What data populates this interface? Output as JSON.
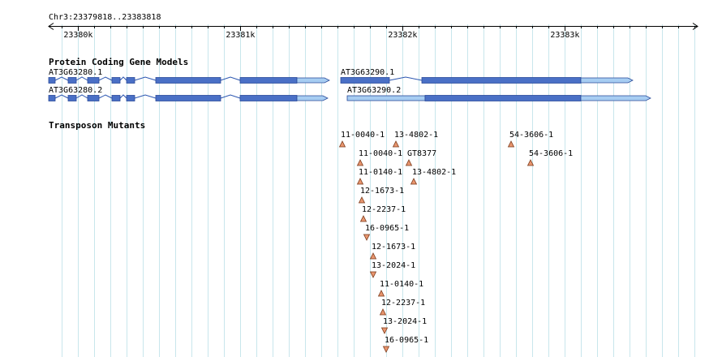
{
  "region": {
    "label": "Chr3:23379818..23383818",
    "start": 23379818,
    "end": 23383818,
    "ticks": [
      {
        "pos": 23380000,
        "label": "23380k"
      },
      {
        "pos": 23381000,
        "label": "23381k"
      },
      {
        "pos": 23382000,
        "label": "23382k"
      },
      {
        "pos": 23383000,
        "label": "23383k"
      }
    ]
  },
  "colors": {
    "grid": "#c8e6ec",
    "axis": "#000000",
    "exon": "#4a70c6",
    "utr": "#a7cdf2",
    "exon_border": "#2a4a99",
    "intron": "#2a55b0",
    "marker_fill": "#e8956e",
    "marker_border": "#7a3a1a"
  },
  "tracks": {
    "genes": {
      "title": "Protein Coding Gene Models",
      "models": [
        {
          "name": "AT3G63280.1",
          "strand": "+",
          "start": 23379818,
          "end": 23381548,
          "exons": [
            [
              23379818,
              23379858
            ],
            [
              23379938,
              23379988
            ],
            [
              23380058,
              23380128
            ],
            [
              23380208,
              23380258
            ],
            [
              23380298,
              23380348
            ],
            [
              23380478,
              23380878
            ],
            [
              23380998,
              23381348
            ]
          ],
          "utrs": [
            [
              23381348,
              23381548
            ]
          ]
        },
        {
          "name": "AT3G63280.2",
          "strand": "+",
          "start": 23379818,
          "end": 23381538,
          "exons": [
            [
              23379818,
              23379858
            ],
            [
              23379938,
              23379988
            ],
            [
              23380058,
              23380128
            ],
            [
              23380208,
              23380258
            ],
            [
              23380298,
              23380348
            ],
            [
              23380478,
              23380878
            ],
            [
              23380998,
              23381348
            ]
          ],
          "utrs": [
            [
              23381348,
              23381538
            ]
          ]
        },
        {
          "name": "AT3G63290.1",
          "strand": "+",
          "start": 23381618,
          "end": 23383418,
          "exons": [
            [
              23381618,
              23381918
            ],
            [
              23382118,
              23383098
            ]
          ],
          "utrs": [
            [
              23383098,
              23383418
            ]
          ]
        },
        {
          "name": "AT3G63290.2",
          "strand": "+",
          "start": 23381658,
          "end": 23383528,
          "exons": [
            [
              23382138,
              23383098
            ]
          ],
          "utrs": [
            [
              23381658,
              23382138
            ],
            [
              23383098,
              23383528
            ]
          ]
        }
      ]
    },
    "mutants": {
      "title": "Transposon Mutants",
      "insertions": [
        {
          "name": "11-0040-1",
          "pos": 23381628,
          "orient": "up"
        },
        {
          "name": "13-4802-1",
          "pos": 23381958,
          "orient": "up"
        },
        {
          "name": "54-3606-1",
          "pos": 23382668,
          "orient": "up"
        },
        {
          "name": "11-0040-1",
          "pos": 23381738,
          "orient": "up"
        },
        {
          "name": "GT8377",
          "pos": 23382038,
          "orient": "up"
        },
        {
          "name": "54-3606-1",
          "pos": 23382788,
          "orient": "up"
        },
        {
          "name": "11-0140-1",
          "pos": 23381738,
          "orient": "up"
        },
        {
          "name": "13-4802-1",
          "pos": 23382068,
          "orient": "up"
        },
        {
          "name": "12-1673-1",
          "pos": 23381748,
          "orient": "up"
        },
        {
          "name": "12-2237-1",
          "pos": 23381758,
          "orient": "up"
        },
        {
          "name": "16-0965-1",
          "pos": 23381778,
          "orient": "down"
        },
        {
          "name": "12-1673-1",
          "pos": 23381818,
          "orient": "up"
        },
        {
          "name": "13-2024-1",
          "pos": 23381818,
          "orient": "down"
        },
        {
          "name": "11-0140-1",
          "pos": 23381868,
          "orient": "up"
        },
        {
          "name": "12-2237-1",
          "pos": 23381878,
          "orient": "up"
        },
        {
          "name": "13-2024-1",
          "pos": 23381888,
          "orient": "down"
        },
        {
          "name": "16-0965-1",
          "pos": 23381898,
          "orient": "down"
        }
      ]
    }
  }
}
